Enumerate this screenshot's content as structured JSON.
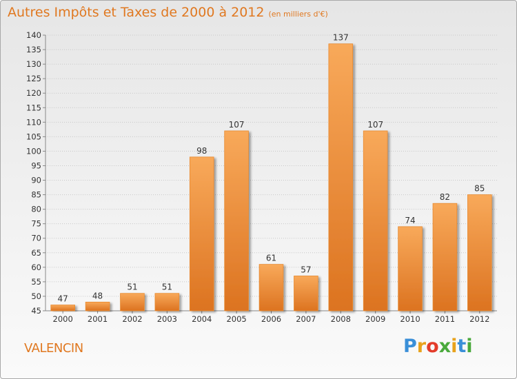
{
  "title": {
    "main": "Autres Impôts et Taxes de 2000 à 2012",
    "unit": "(en milliers d'€)"
  },
  "footer": {
    "place": "VALENCIN",
    "logo_letters": [
      "P",
      "r",
      "o",
      "x",
      "i",
      "t",
      "i"
    ],
    "logo_colors": [
      "#3a8fd8",
      "#e8a21c",
      "#e33c2a",
      "#4aa93c",
      "#e8a21c",
      "#3a8fd8",
      "#4aa93c"
    ]
  },
  "colors": {
    "bar_light": "#f8a95a",
    "bar_dark": "#dc7320",
    "axis": "#888888",
    "grid": "#c8c8c8",
    "text": "#333333",
    "title": "#e07820"
  },
  "chart_data": {
    "type": "bar",
    "categories": [
      "2000",
      "2001",
      "2002",
      "2003",
      "2004",
      "2005",
      "2006",
      "2007",
      "2008",
      "2009",
      "2010",
      "2011",
      "2012"
    ],
    "values": [
      47,
      48,
      51,
      51,
      98,
      107,
      61,
      57,
      137,
      107,
      74,
      82,
      85
    ],
    "value_labels": [
      "47",
      "48",
      "51",
      "51",
      "98",
      "107",
      "61",
      "57",
      "137",
      "107",
      "74",
      "82",
      "85"
    ],
    "ylim": [
      45,
      140
    ],
    "yticks": [
      45,
      50,
      55,
      60,
      65,
      70,
      75,
      80,
      85,
      90,
      95,
      100,
      105,
      110,
      115,
      120,
      125,
      130,
      135,
      140
    ],
    "grid": true,
    "legend": "none"
  }
}
